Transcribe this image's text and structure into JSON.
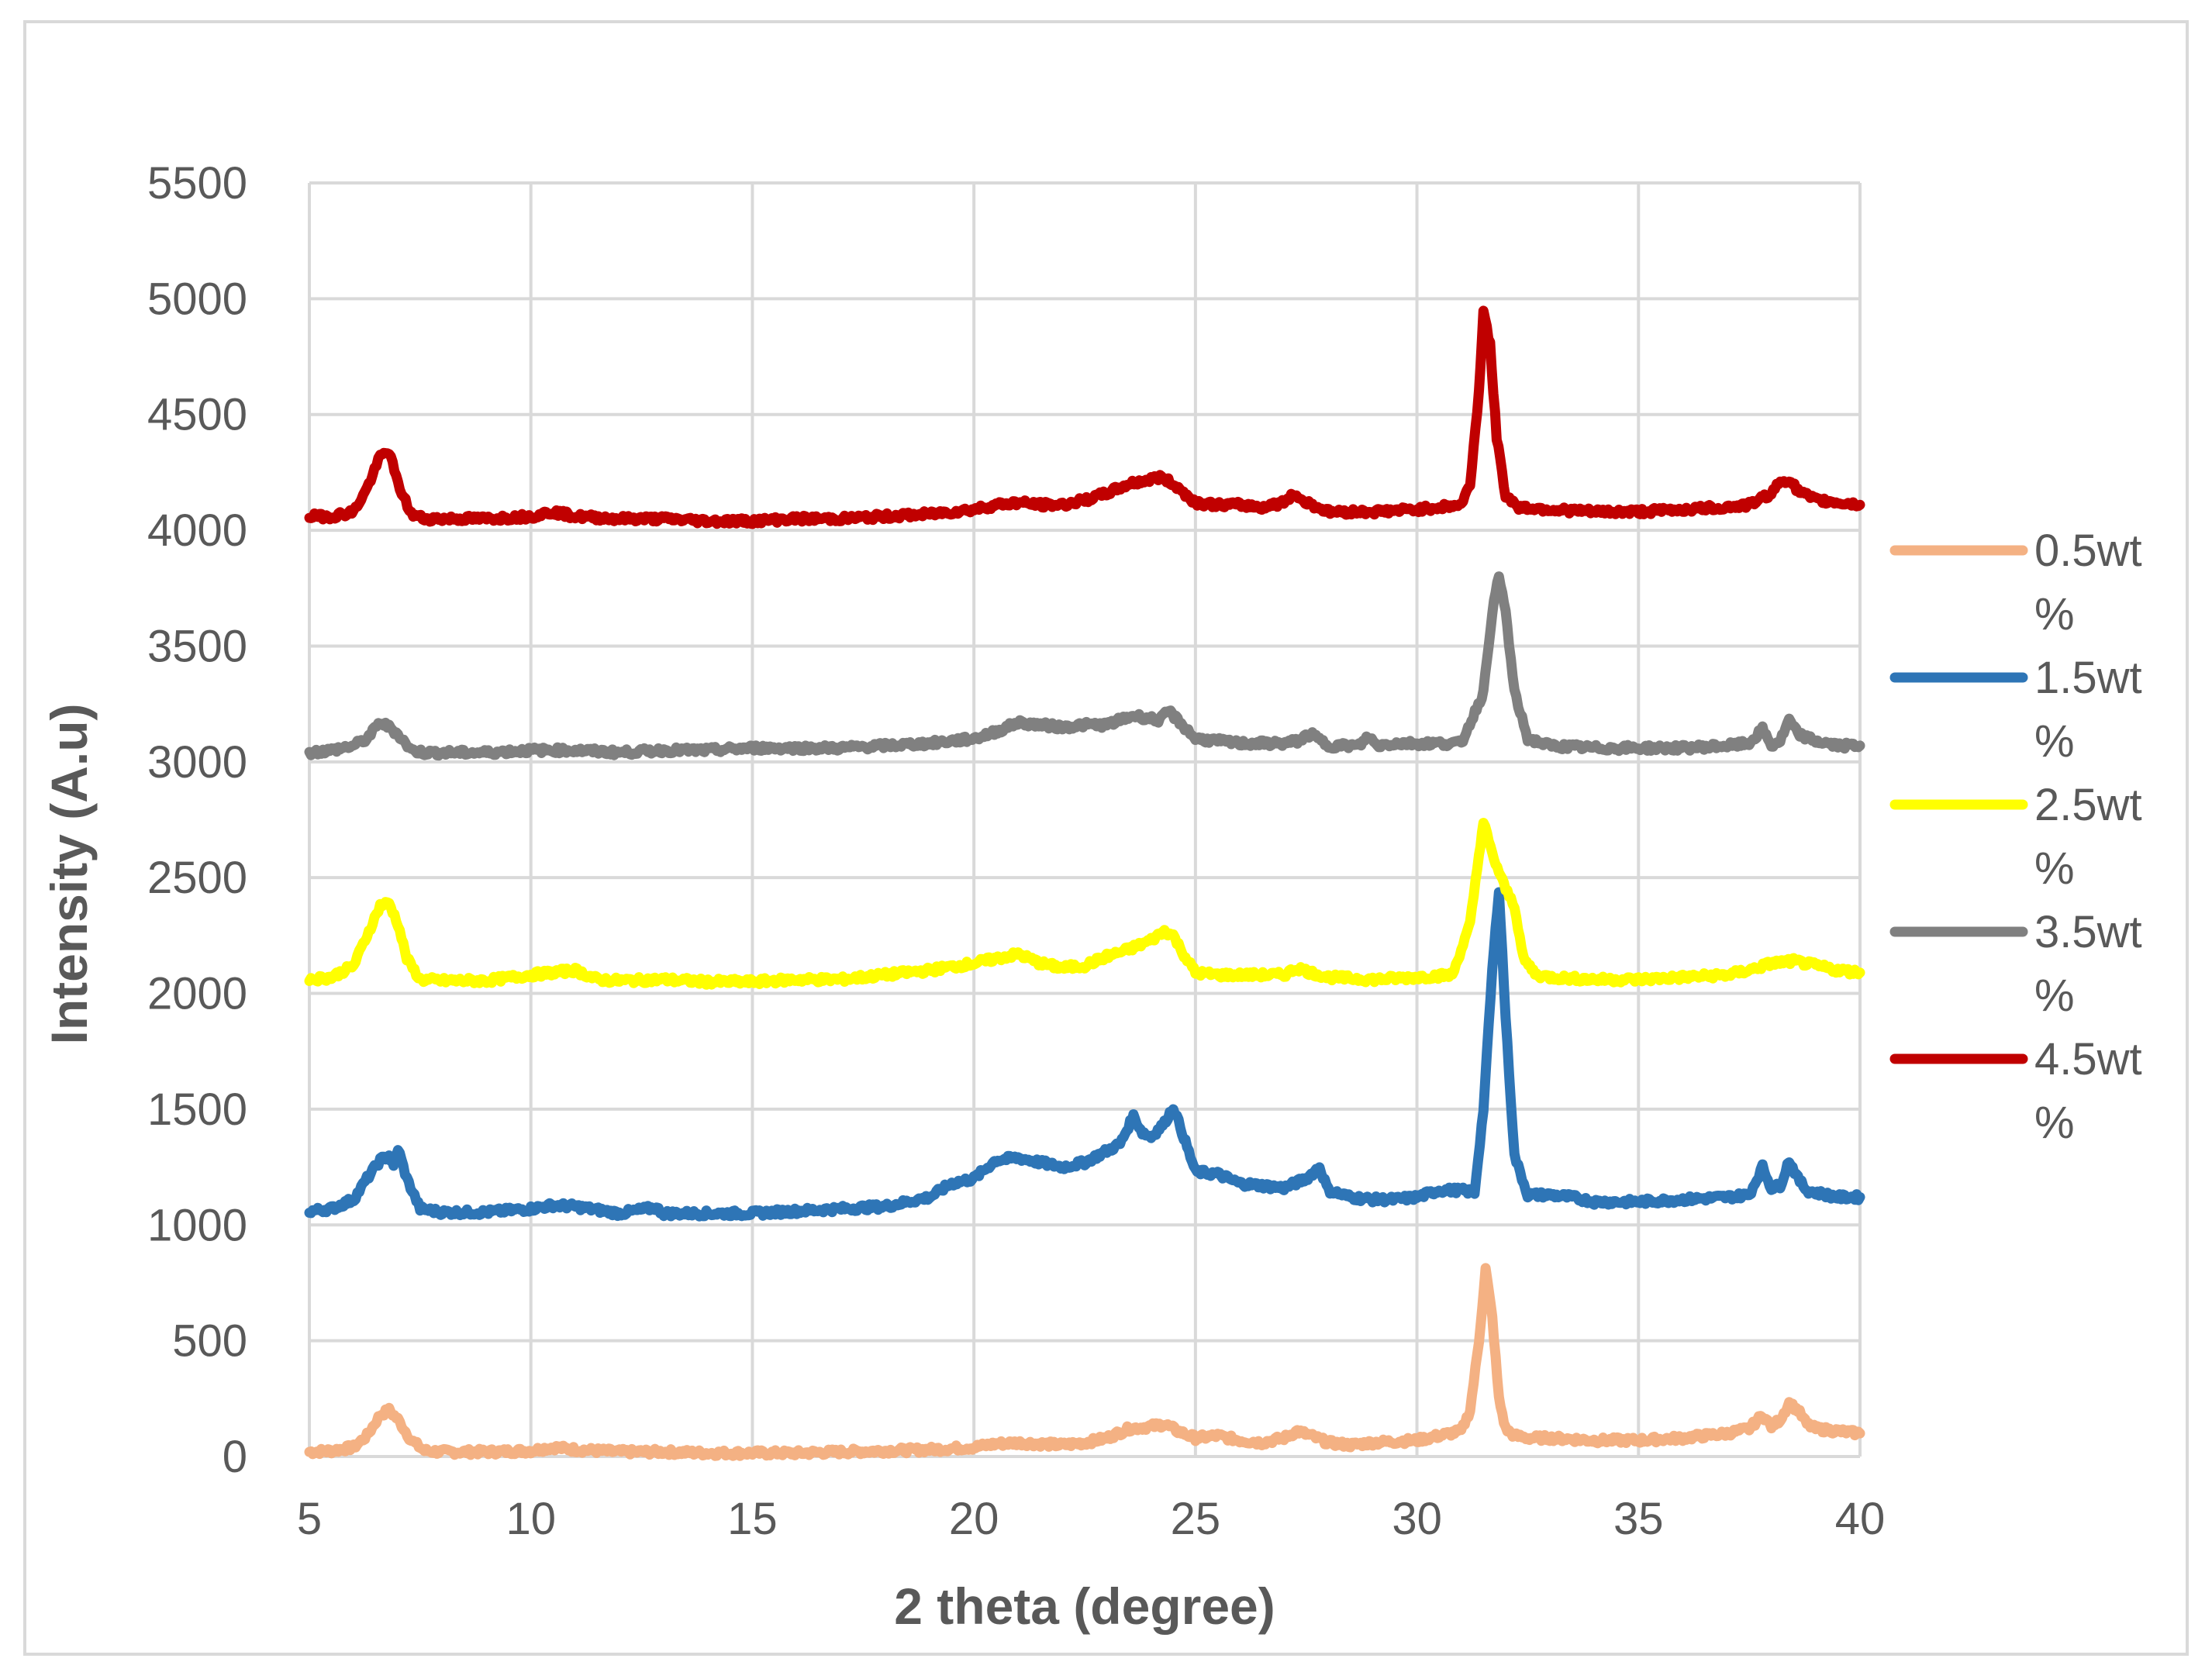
{
  "chart_data": {
    "type": "line",
    "title": "",
    "xlabel": "2 theta (degree)",
    "ylabel": "Intensity (A.u)",
    "xlim": [
      5,
      40
    ],
    "ylim": [
      0,
      5500
    ],
    "x_ticks": [
      5,
      10,
      15,
      20,
      25,
      30,
      35,
      40
    ],
    "y_ticks": [
      0,
      500,
      1000,
      1500,
      2000,
      2500,
      3000,
      3500,
      4000,
      4500,
      5000,
      5500
    ],
    "grid": true,
    "legend_position": "right",
    "series": [
      {
        "name": "0.5wt %",
        "legend_lines": [
          "0.5wt",
          "%"
        ],
        "color": "#f4b183",
        "x": [
          5,
          5.5,
          6,
          6.3,
          6.6,
          6.8,
          7.0,
          7.3,
          7.6,
          8,
          9,
          10,
          10.5,
          11,
          12,
          13,
          14,
          15,
          16,
          17,
          18,
          19,
          20,
          20.5,
          21,
          21.5,
          22,
          22.5,
          23,
          23.5,
          24,
          24.3,
          24.6,
          25,
          25.5,
          26,
          26.5,
          27,
          27.3,
          27.6,
          28,
          28.5,
          29,
          30,
          30.5,
          31,
          31.2,
          31.4,
          31.55,
          31.7,
          31.85,
          32.0,
          32.2,
          32.5,
          33,
          34,
          35,
          36,
          37,
          37.5,
          37.8,
          38.0,
          38.2,
          38.4,
          38.6,
          38.8,
          39,
          39.5,
          40
        ],
        "y": [
          20,
          25,
          40,
          90,
          180,
          200,
          160,
          70,
          25,
          20,
          20,
          25,
          40,
          30,
          20,
          20,
          15,
          15,
          15,
          20,
          25,
          30,
          40,
          55,
          60,
          55,
          50,
          60,
          80,
          120,
          130,
          140,
          110,
          80,
          90,
          70,
          60,
          80,
          110,
          90,
          60,
          50,
          60,
          70,
          90,
          110,
          200,
          500,
          810,
          600,
          250,
          120,
          90,
          80,
          80,
          70,
          70,
          80,
          100,
          120,
          180,
          130,
          160,
          230,
          200,
          140,
          120,
          110,
          100
        ]
      },
      {
        "name": "1.5wt %",
        "legend_lines": [
          "1.5wt",
          "%"
        ],
        "color": "#2e75b6",
        "x": [
          5,
          5.5,
          6,
          6.3,
          6.6,
          6.8,
          6.9,
          7.0,
          7.2,
          7.5,
          8,
          9,
          10,
          10.5,
          11,
          12,
          12.8,
          13,
          14,
          15,
          16,
          17,
          18,
          19,
          19.5,
          20,
          20.5,
          21,
          21.5,
          22,
          22.5,
          23,
          23.3,
          23.6,
          23.8,
          24,
          24.3,
          24.5,
          24.7,
          25,
          25.5,
          26,
          26.5,
          27,
          27.5,
          27.8,
          28,
          28.5,
          29,
          29.5,
          30,
          30.5,
          31,
          31.3,
          31.5,
          31.7,
          31.85,
          32.0,
          32.2,
          32.5,
          33,
          33.5,
          34,
          35,
          36,
          37,
          37.5,
          37.8,
          38.0,
          38.2,
          38.4,
          38.6,
          38.8,
          39,
          39.5,
          40
        ],
        "y": [
          1060,
          1070,
          1110,
          1200,
          1280,
          1300,
          1250,
          1330,
          1200,
          1070,
          1055,
          1055,
          1070,
          1085,
          1080,
          1050,
          1075,
          1050,
          1050,
          1050,
          1060,
          1070,
          1080,
          1120,
          1180,
          1200,
          1280,
          1290,
          1270,
          1250,
          1270,
          1320,
          1350,
          1470,
          1400,
          1380,
          1440,
          1510,
          1400,
          1230,
          1220,
          1180,
          1170,
          1160,
          1200,
          1250,
          1150,
          1120,
          1110,
          1110,
          1120,
          1150,
          1150,
          1140,
          1500,
          2100,
          2450,
          1900,
          1300,
          1130,
          1130,
          1120,
          1100,
          1100,
          1110,
          1120,
          1130,
          1250,
          1160,
          1170,
          1280,
          1200,
          1150,
          1140,
          1120,
          1120
        ]
      },
      {
        "name": "2.5wt %",
        "legend_lines": [
          "2.5wt",
          "%"
        ],
        "color": "#ffff00",
        "x": [
          5,
          5.5,
          6,
          6.3,
          6.6,
          6.8,
          7.0,
          7.2,
          7.5,
          8,
          9,
          10,
          10.5,
          11,
          11.5,
          12,
          13,
          14,
          15,
          16,
          17,
          18,
          19,
          20,
          20.5,
          21,
          21.5,
          22,
          22.5,
          23,
          23.5,
          24,
          24.3,
          24.5,
          24.7,
          25,
          25.5,
          26,
          27,
          27.3,
          27.6,
          28,
          29,
          30,
          30.8,
          31.2,
          31.4,
          31.5,
          31.7,
          32.0,
          32.2,
          32.4,
          32.7,
          33,
          34,
          35,
          36,
          37,
          37.5,
          38,
          38.5,
          39,
          39.5,
          40
        ],
        "y": [
          2060,
          2070,
          2120,
          2250,
          2380,
          2390,
          2300,
          2150,
          2060,
          2055,
          2055,
          2080,
          2090,
          2100,
          2060,
          2055,
          2060,
          2050,
          2050,
          2060,
          2060,
          2080,
          2100,
          2130,
          2150,
          2170,
          2130,
          2110,
          2120,
          2160,
          2190,
          2230,
          2270,
          2250,
          2180,
          2090,
          2080,
          2080,
          2080,
          2110,
          2090,
          2070,
          2060,
          2070,
          2080,
          2300,
          2600,
          2740,
          2600,
          2450,
          2380,
          2150,
          2080,
          2070,
          2060,
          2060,
          2070,
          2080,
          2100,
          2130,
          2140,
          2120,
          2100,
          2090
        ]
      },
      {
        "name": "3.5wt %",
        "legend_lines": [
          "3.5wt",
          "%"
        ],
        "color": "#808080",
        "x": [
          5,
          5.5,
          6,
          6.3,
          6.6,
          6.8,
          7.0,
          7.3,
          7.6,
          8,
          9,
          10,
          11,
          12,
          13,
          14,
          15,
          16,
          17,
          18,
          19,
          20,
          20.5,
          21,
          21.5,
          22,
          22.5,
          23,
          23.3,
          23.6,
          23.9,
          24.2,
          24.4,
          24.6,
          25,
          25.5,
          26,
          27,
          27.3,
          27.6,
          28,
          28.7,
          28.9,
          29.1,
          29.5,
          30,
          31,
          31.5,
          31.7,
          31.85,
          32.0,
          32.2,
          32.5,
          33,
          34,
          35,
          36,
          37,
          37.5,
          37.8,
          38.0,
          38.2,
          38.4,
          38.6,
          39,
          39.5,
          40
        ],
        "y": [
          3040,
          3050,
          3070,
          3100,
          3170,
          3150,
          3120,
          3050,
          3040,
          3040,
          3040,
          3050,
          3050,
          3040,
          3050,
          3050,
          3060,
          3060,
          3060,
          3070,
          3080,
          3100,
          3130,
          3170,
          3160,
          3150,
          3160,
          3160,
          3180,
          3200,
          3190,
          3180,
          3220,
          3180,
          3100,
          3090,
          3080,
          3080,
          3090,
          3120,
          3070,
          3070,
          3110,
          3070,
          3080,
          3080,
          3080,
          3300,
          3650,
          3800,
          3650,
          3300,
          3100,
          3070,
          3060,
          3060,
          3060,
          3070,
          3080,
          3140,
          3070,
          3090,
          3180,
          3120,
          3090,
          3070,
          3070
        ]
      },
      {
        "name": "4.5wt %",
        "legend_lines": [
          "4.5wt",
          "%"
        ],
        "color": "#c00000",
        "x": [
          5,
          5.5,
          6,
          6.3,
          6.6,
          6.8,
          7.0,
          7.3,
          7.6,
          8,
          9,
          10,
          10.5,
          11,
          12,
          13,
          14,
          15,
          16,
          17,
          18,
          19,
          20,
          20.5,
          21,
          21.5,
          22,
          22.5,
          23,
          23.5,
          24,
          24.2,
          24.5,
          25,
          25.5,
          26,
          26.5,
          27,
          27.2,
          27.4,
          28,
          29,
          30,
          30.5,
          31,
          31.2,
          31.4,
          31.5,
          31.65,
          31.8,
          32.0,
          32.3,
          33,
          34,
          35,
          36,
          37,
          37.5,
          38,
          38.2,
          38.4,
          38.6,
          39,
          39.5,
          40
        ],
        "y": [
          4060,
          4060,
          4080,
          4180,
          4320,
          4340,
          4200,
          4070,
          4050,
          4050,
          4050,
          4060,
          4080,
          4060,
          4050,
          4050,
          4040,
          4040,
          4050,
          4050,
          4060,
          4070,
          4090,
          4110,
          4120,
          4110,
          4110,
          4130,
          4160,
          4200,
          4220,
          4230,
          4200,
          4120,
          4110,
          4110,
          4100,
          4120,
          4160,
          4130,
          4080,
          4080,
          4090,
          4100,
          4110,
          4200,
          4600,
          4950,
          4800,
          4400,
          4150,
          4100,
          4090,
          4080,
          4080,
          4090,
          4100,
          4110,
          4160,
          4210,
          4220,
          4170,
          4130,
          4120,
          4110
        ]
      }
    ]
  }
}
